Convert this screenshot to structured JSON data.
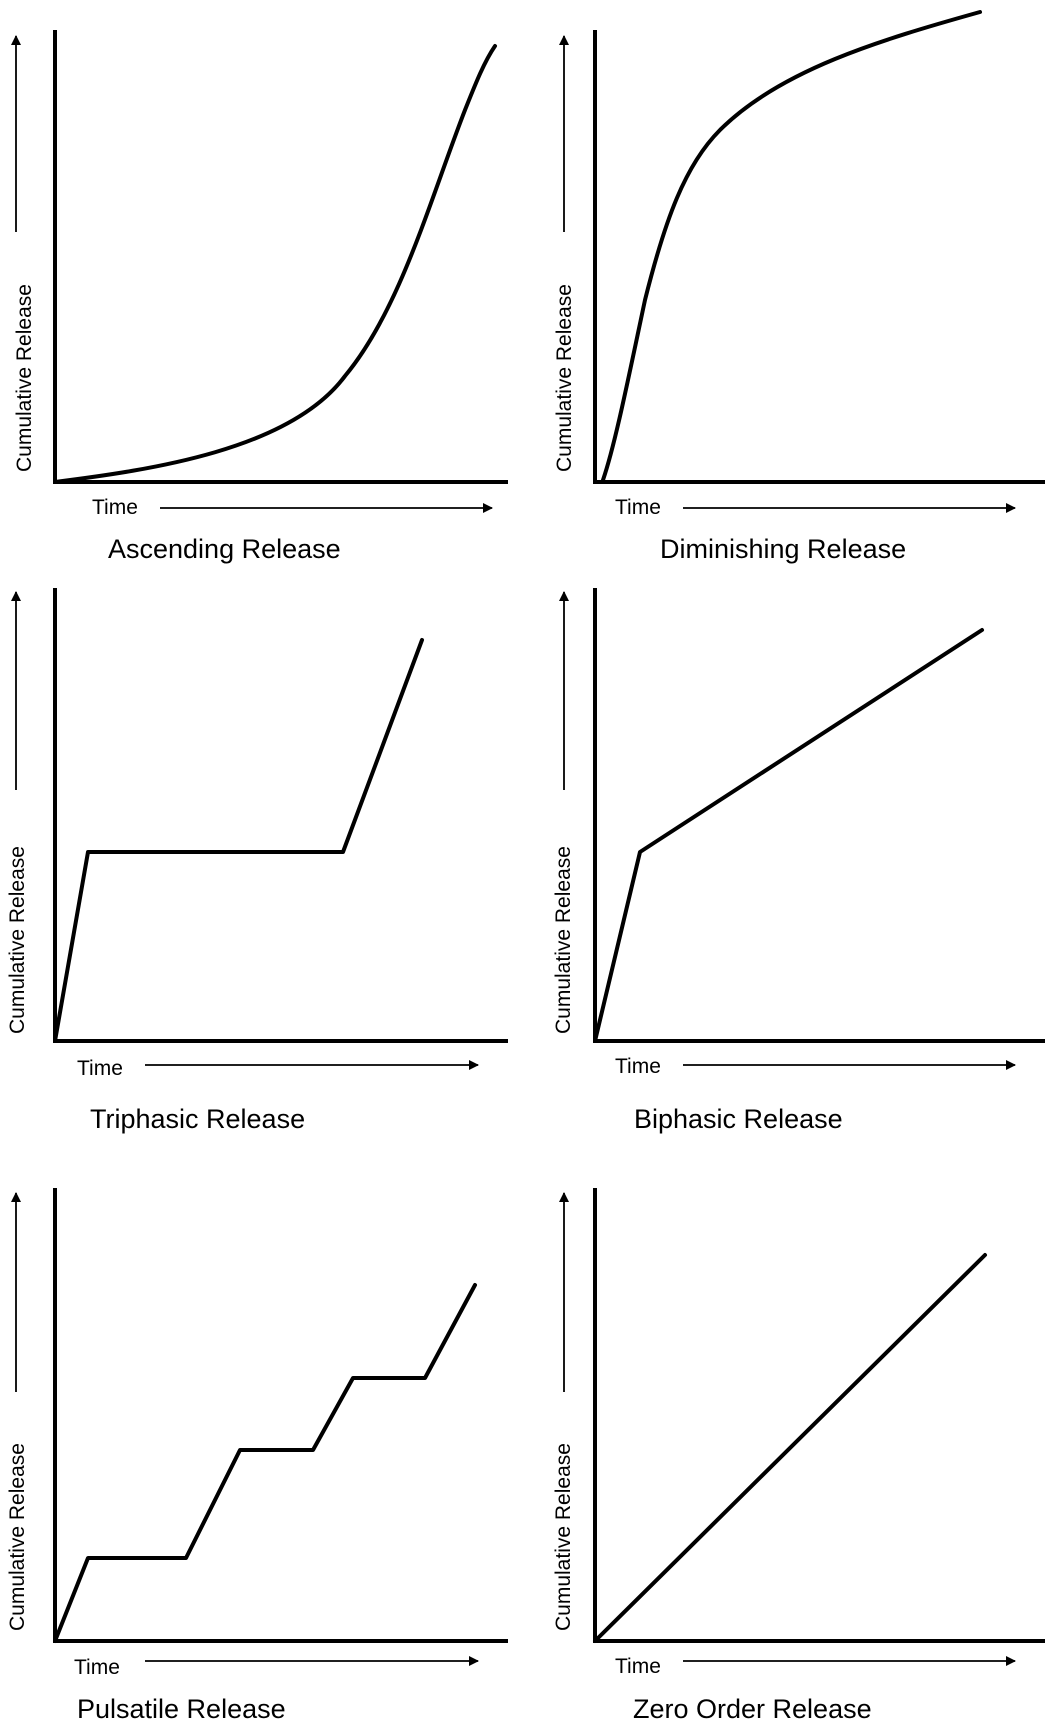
{
  "panels": [
    {
      "id": "ascending",
      "title": "Ascending Release",
      "ylabel": "Cumulative Release",
      "xlabel": "Time"
    },
    {
      "id": "diminishing",
      "title": "Diminishing Release",
      "ylabel": "Cumulative Release",
      "xlabel": "Time"
    },
    {
      "id": "triphasic",
      "title": "Triphasic Release",
      "ylabel": "Cumulative Release",
      "xlabel": "Time"
    },
    {
      "id": "biphasic",
      "title": "Biphasic Release",
      "ylabel": "Cumulative Release",
      "xlabel": "Time"
    },
    {
      "id": "pulsatile",
      "title": "Pulsatile Release",
      "ylabel": "Cumulative Release",
      "xlabel": "Time"
    },
    {
      "id": "zero-order",
      "title": "Zero Order Release",
      "ylabel": "Cumulative Release",
      "xlabel": "Time"
    }
  ]
}
